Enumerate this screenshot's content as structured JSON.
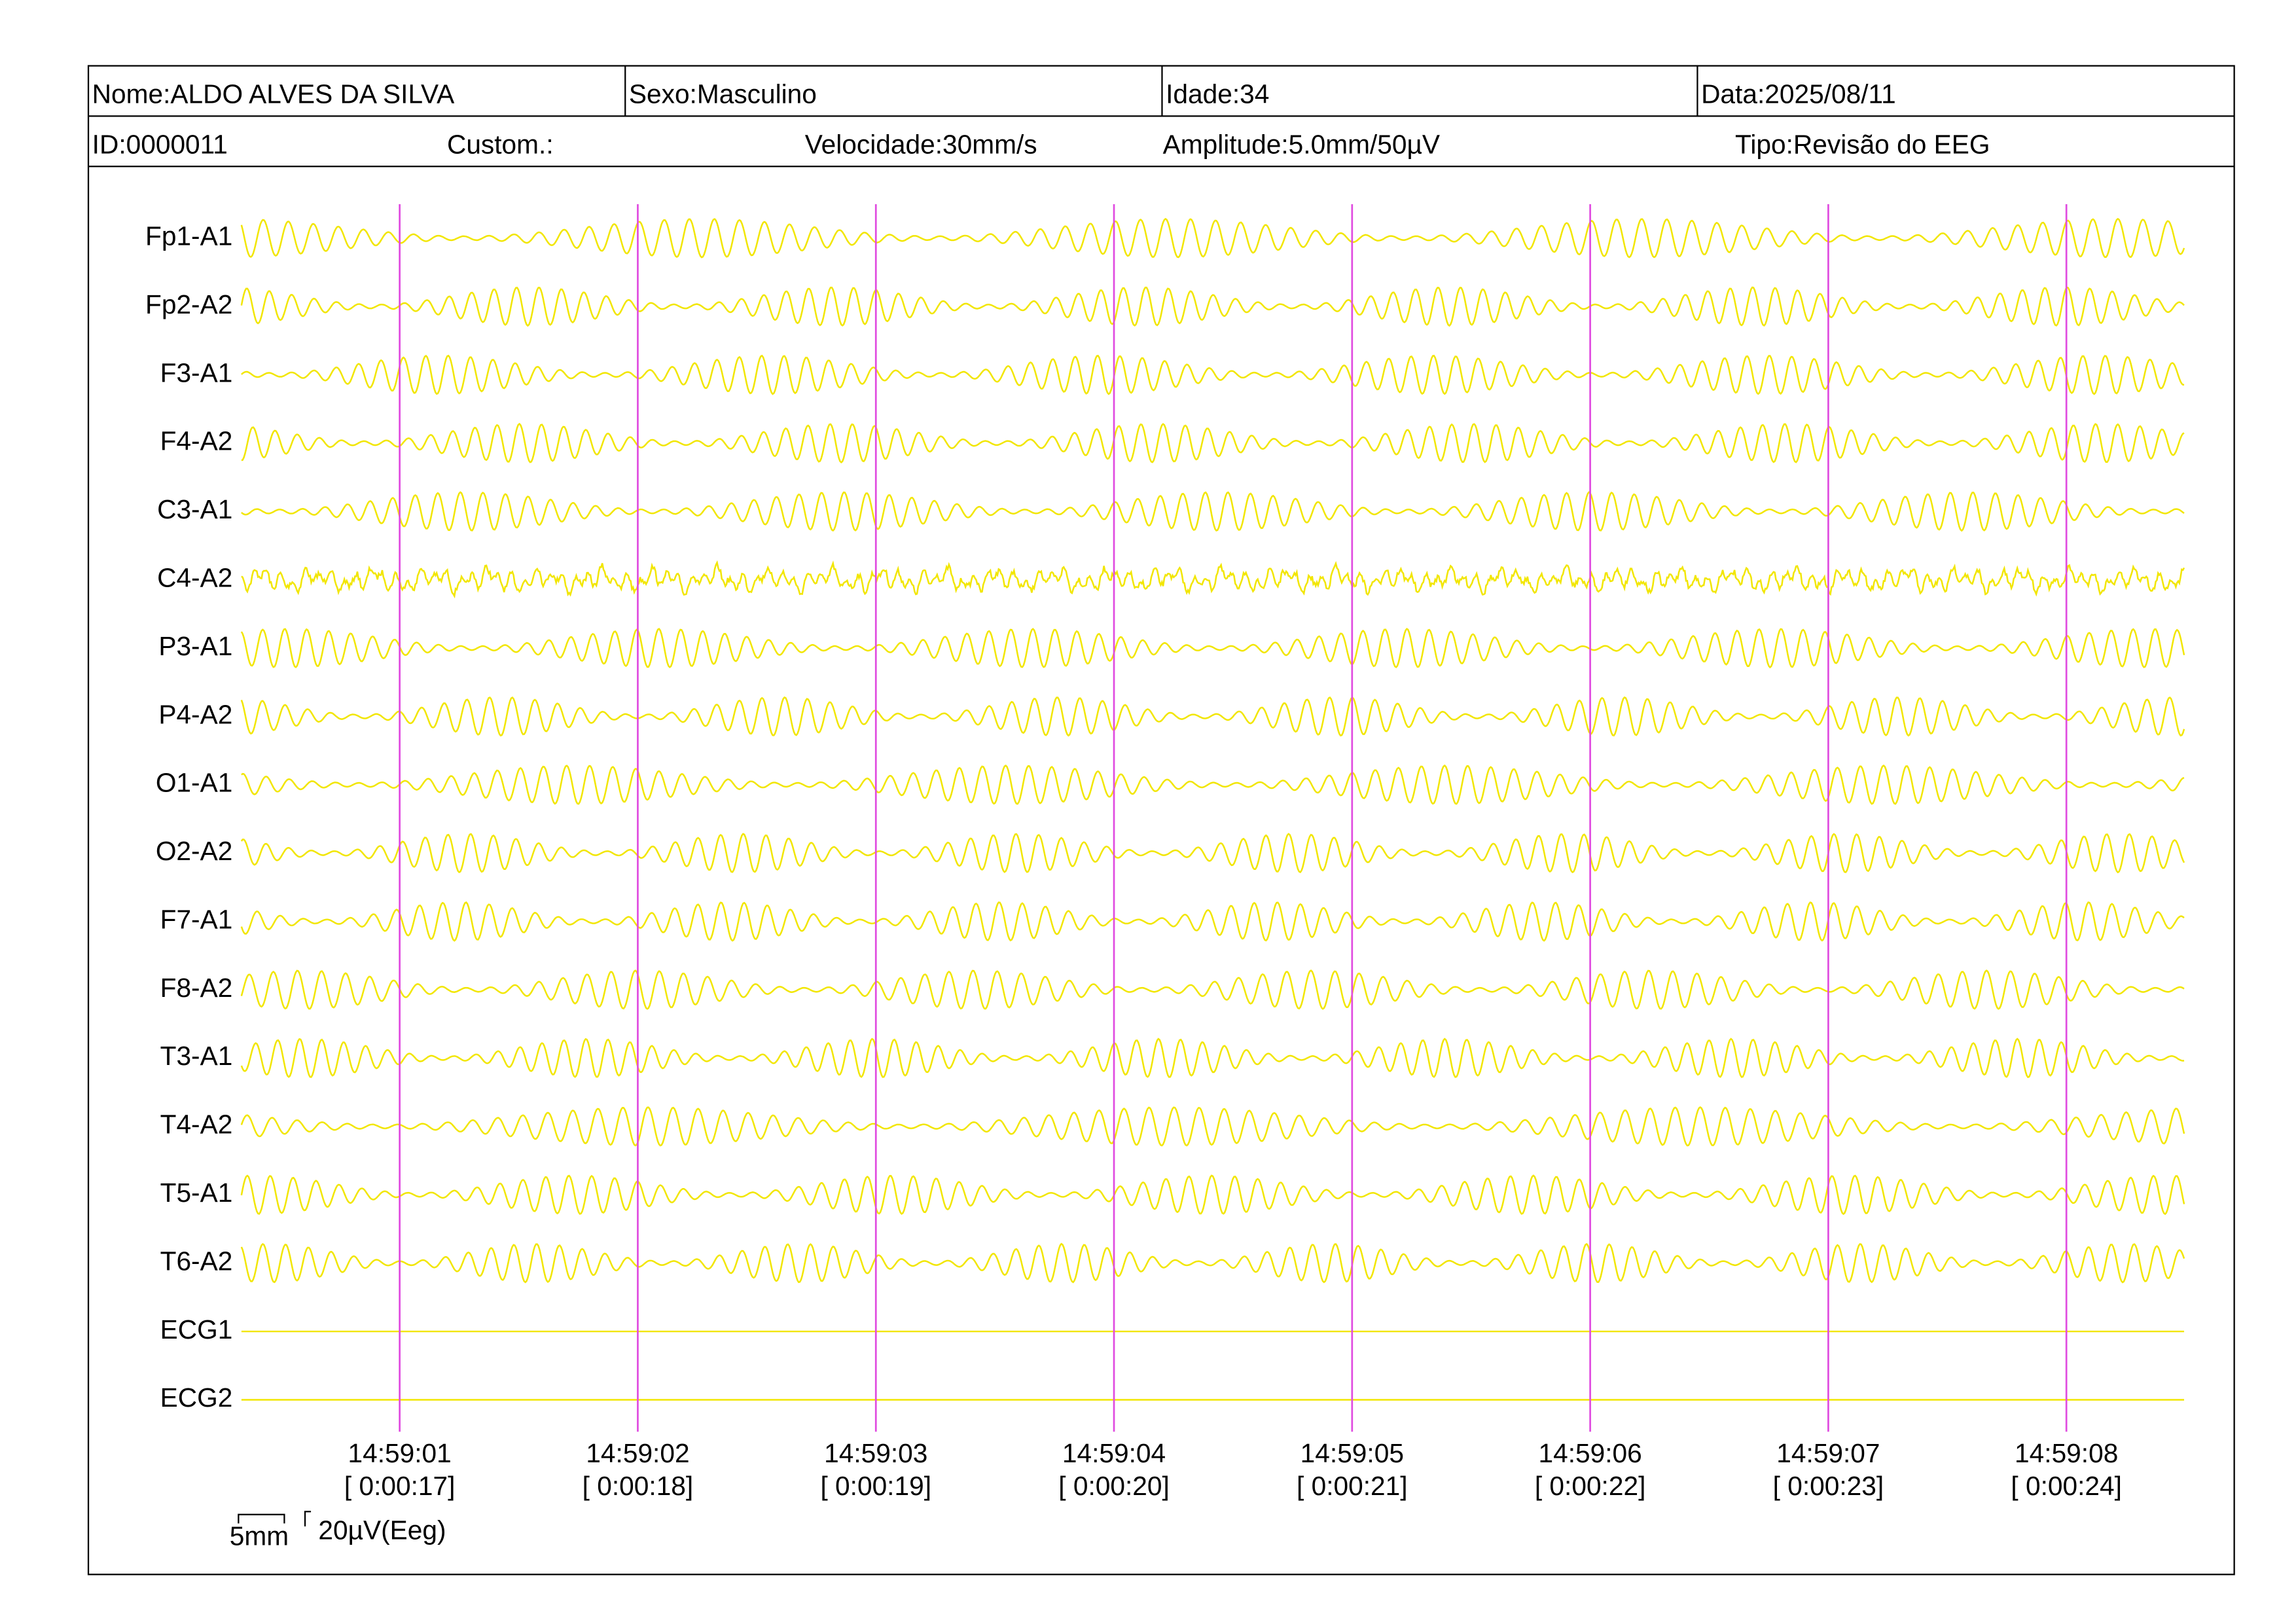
{
  "header": {
    "name": "Nome:ALDO ALVES DA SILVA",
    "sex": "Sexo:Masculino",
    "age": "Idade:34",
    "date": "Data:2025/08/11",
    "id": "ID:0000011",
    "custom": "Custom.:",
    "speed": "Velocidade:30mm/s",
    "amplitude": "Amplitude:5.0mm/50µV",
    "type": "Tipo:Revisão do EEG"
  },
  "channels": [
    "Fp1-A1",
    "Fp2-A2",
    "F3-A1",
    "F4-A2",
    "C3-A1",
    "C4-A2",
    "P3-A1",
    "P4-A2",
    "O1-A1",
    "O2-A2",
    "F7-A1",
    "F8-A2",
    "T3-A1",
    "T4-A2",
    "T5-A1",
    "T6-A2",
    "ECG1",
    "ECG2"
  ],
  "time_marks": [
    {
      "clock": "14:59:01",
      "elapsed": "[ 0:00:17]"
    },
    {
      "clock": "14:59:02",
      "elapsed": "[ 0:00:18]"
    },
    {
      "clock": "14:59:03",
      "elapsed": "[ 0:00:19]"
    },
    {
      "clock": "14:59:04",
      "elapsed": "[ 0:00:20]"
    },
    {
      "clock": "14:59:05",
      "elapsed": "[ 0:00:21]"
    },
    {
      "clock": "14:59:06",
      "elapsed": "[ 0:00:22]"
    },
    {
      "clock": "14:59:07",
      "elapsed": "[ 0:00:23]"
    },
    {
      "clock": "14:59:08",
      "elapsed": "[ 0:00:24]"
    }
  ],
  "scale": {
    "time": "5mm",
    "amplitude": "20µV(Eeg)"
  }
}
